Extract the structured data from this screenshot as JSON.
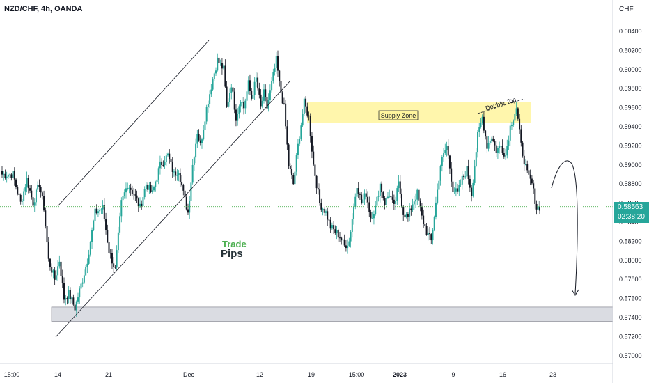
{
  "header": {
    "title": "NZD/CHF, 4h, OANDA"
  },
  "currency_label": "CHF",
  "price_badge": {
    "price": "0.58563",
    "countdown": "02:38:20"
  },
  "logo": {
    "line1": "Trade",
    "line2": "Pips"
  },
  "colors": {
    "up": "#26a69a",
    "down": "#131722",
    "supply": "#fff59d",
    "demand": "#d1d4dc",
    "last_price_line": "#4caf50"
  },
  "annotations": {
    "supply_zone": "Supply Zone",
    "double_top": "Double Top"
  },
  "chart_data": {
    "type": "candlestick",
    "symbol": "NZD/CHF",
    "timeframe": "4h",
    "source": "OANDA",
    "y_axis": {
      "ticks": [
        "0.60400",
        "0.60200",
        "0.60000",
        "0.59800",
        "0.59600",
        "0.59400",
        "0.59200",
        "0.59000",
        "0.58800",
        "0.58600",
        "0.58400",
        "0.58200",
        "0.58000",
        "0.57800",
        "0.57600",
        "0.57400",
        "0.57200",
        "0.57000"
      ],
      "range": [
        0.5695,
        0.6055
      ]
    },
    "x_axis": {
      "ticks": [
        "15:00",
        "14",
        "21",
        "Dec",
        "12",
        "19",
        "15:00",
        "2023",
        "9",
        "16",
        "23"
      ]
    },
    "last_price": 0.58563,
    "supply_zone": [
      0.5944,
      0.5966
    ],
    "demand_zone": [
      0.5736,
      0.5751
    ],
    "price_path": [
      [
        0.589,
        8
      ],
      [
        0.586,
        5
      ],
      [
        0.5885,
        4
      ],
      [
        0.586,
        4
      ],
      [
        0.588,
        4
      ],
      [
        0.5855,
        3
      ],
      [
        0.58,
        3
      ],
      [
        0.578,
        4
      ],
      [
        0.58,
        3
      ],
      [
        0.576,
        3
      ],
      [
        0.5765,
        3
      ],
      [
        0.575,
        4
      ],
      [
        0.578,
        5
      ],
      [
        0.58,
        3
      ],
      [
        0.585,
        5
      ],
      [
        0.5855,
        5
      ],
      [
        0.581,
        4
      ],
      [
        0.579,
        4
      ],
      [
        0.586,
        4
      ],
      [
        0.588,
        4
      ],
      [
        0.587,
        4
      ],
      [
        0.5855,
        4
      ],
      [
        0.588,
        4
      ],
      [
        0.587,
        4
      ],
      [
        0.59,
        5
      ],
      [
        0.591,
        5
      ],
      [
        0.589,
        4
      ],
      [
        0.5895,
        3
      ],
      [
        0.587,
        3
      ],
      [
        0.585,
        3
      ],
      [
        0.59,
        3
      ],
      [
        0.5935,
        3
      ],
      [
        0.592,
        2
      ],
      [
        0.596,
        4
      ],
      [
        0.599,
        4
      ],
      [
        0.601,
        3
      ],
      [
        0.6,
        4
      ],
      [
        0.596,
        2
      ],
      [
        0.5985,
        3
      ],
      [
        0.595,
        3
      ],
      [
        0.597,
        3
      ],
      [
        0.596,
        2
      ],
      [
        0.5985,
        3
      ],
      [
        0.597,
        2
      ],
      [
        0.599,
        3
      ],
      [
        0.596,
        3
      ],
      [
        0.5975,
        2
      ],
      [
        0.596,
        2
      ],
      [
        0.5985,
        3
      ],
      [
        0.601,
        3
      ],
      [
        0.5985,
        2
      ],
      [
        0.596,
        3
      ],
      [
        0.59,
        3
      ],
      [
        0.588,
        3
      ],
      [
        0.592,
        3
      ],
      [
        0.5965,
        4
      ],
      [
        0.595,
        3
      ],
      [
        0.59,
        3
      ],
      [
        0.586,
        4
      ],
      [
        0.585,
        4
      ],
      [
        0.5835,
        3
      ],
      [
        0.583,
        3
      ],
      [
        0.5825,
        3
      ],
      [
        0.5815,
        3
      ],
      [
        0.582,
        3
      ],
      [
        0.588,
        5
      ],
      [
        0.586,
        3
      ],
      [
        0.587,
        3
      ],
      [
        0.5845,
        3
      ],
      [
        0.5855,
        3
      ],
      [
        0.588,
        3
      ],
      [
        0.586,
        3
      ],
      [
        0.587,
        3
      ],
      [
        0.5855,
        3
      ],
      [
        0.588,
        3
      ],
      [
        0.585,
        3
      ],
      [
        0.5845,
        3
      ],
      [
        0.586,
        3
      ],
      [
        0.587,
        3
      ],
      [
        0.5845,
        3
      ],
      [
        0.583,
        3
      ],
      [
        0.582,
        3
      ],
      [
        0.586,
        3
      ],
      [
        0.59,
        3
      ],
      [
        0.592,
        4
      ],
      [
        0.5875,
        4
      ],
      [
        0.587,
        3
      ],
      [
        0.5885,
        3
      ],
      [
        0.5895,
        3
      ],
      [
        0.587,
        3
      ],
      [
        0.593,
        4
      ],
      [
        0.595,
        3
      ],
      [
        0.592,
        3
      ],
      [
        0.593,
        3
      ],
      [
        0.5915,
        3
      ],
      [
        0.592,
        3
      ],
      [
        0.591,
        3
      ],
      [
        0.594,
        3
      ],
      [
        0.596,
        4
      ],
      [
        0.592,
        3
      ],
      [
        0.589,
        4
      ],
      [
        0.588,
        3
      ],
      [
        0.5855,
        3
      ],
      [
        0.5856,
        2
      ]
    ]
  }
}
